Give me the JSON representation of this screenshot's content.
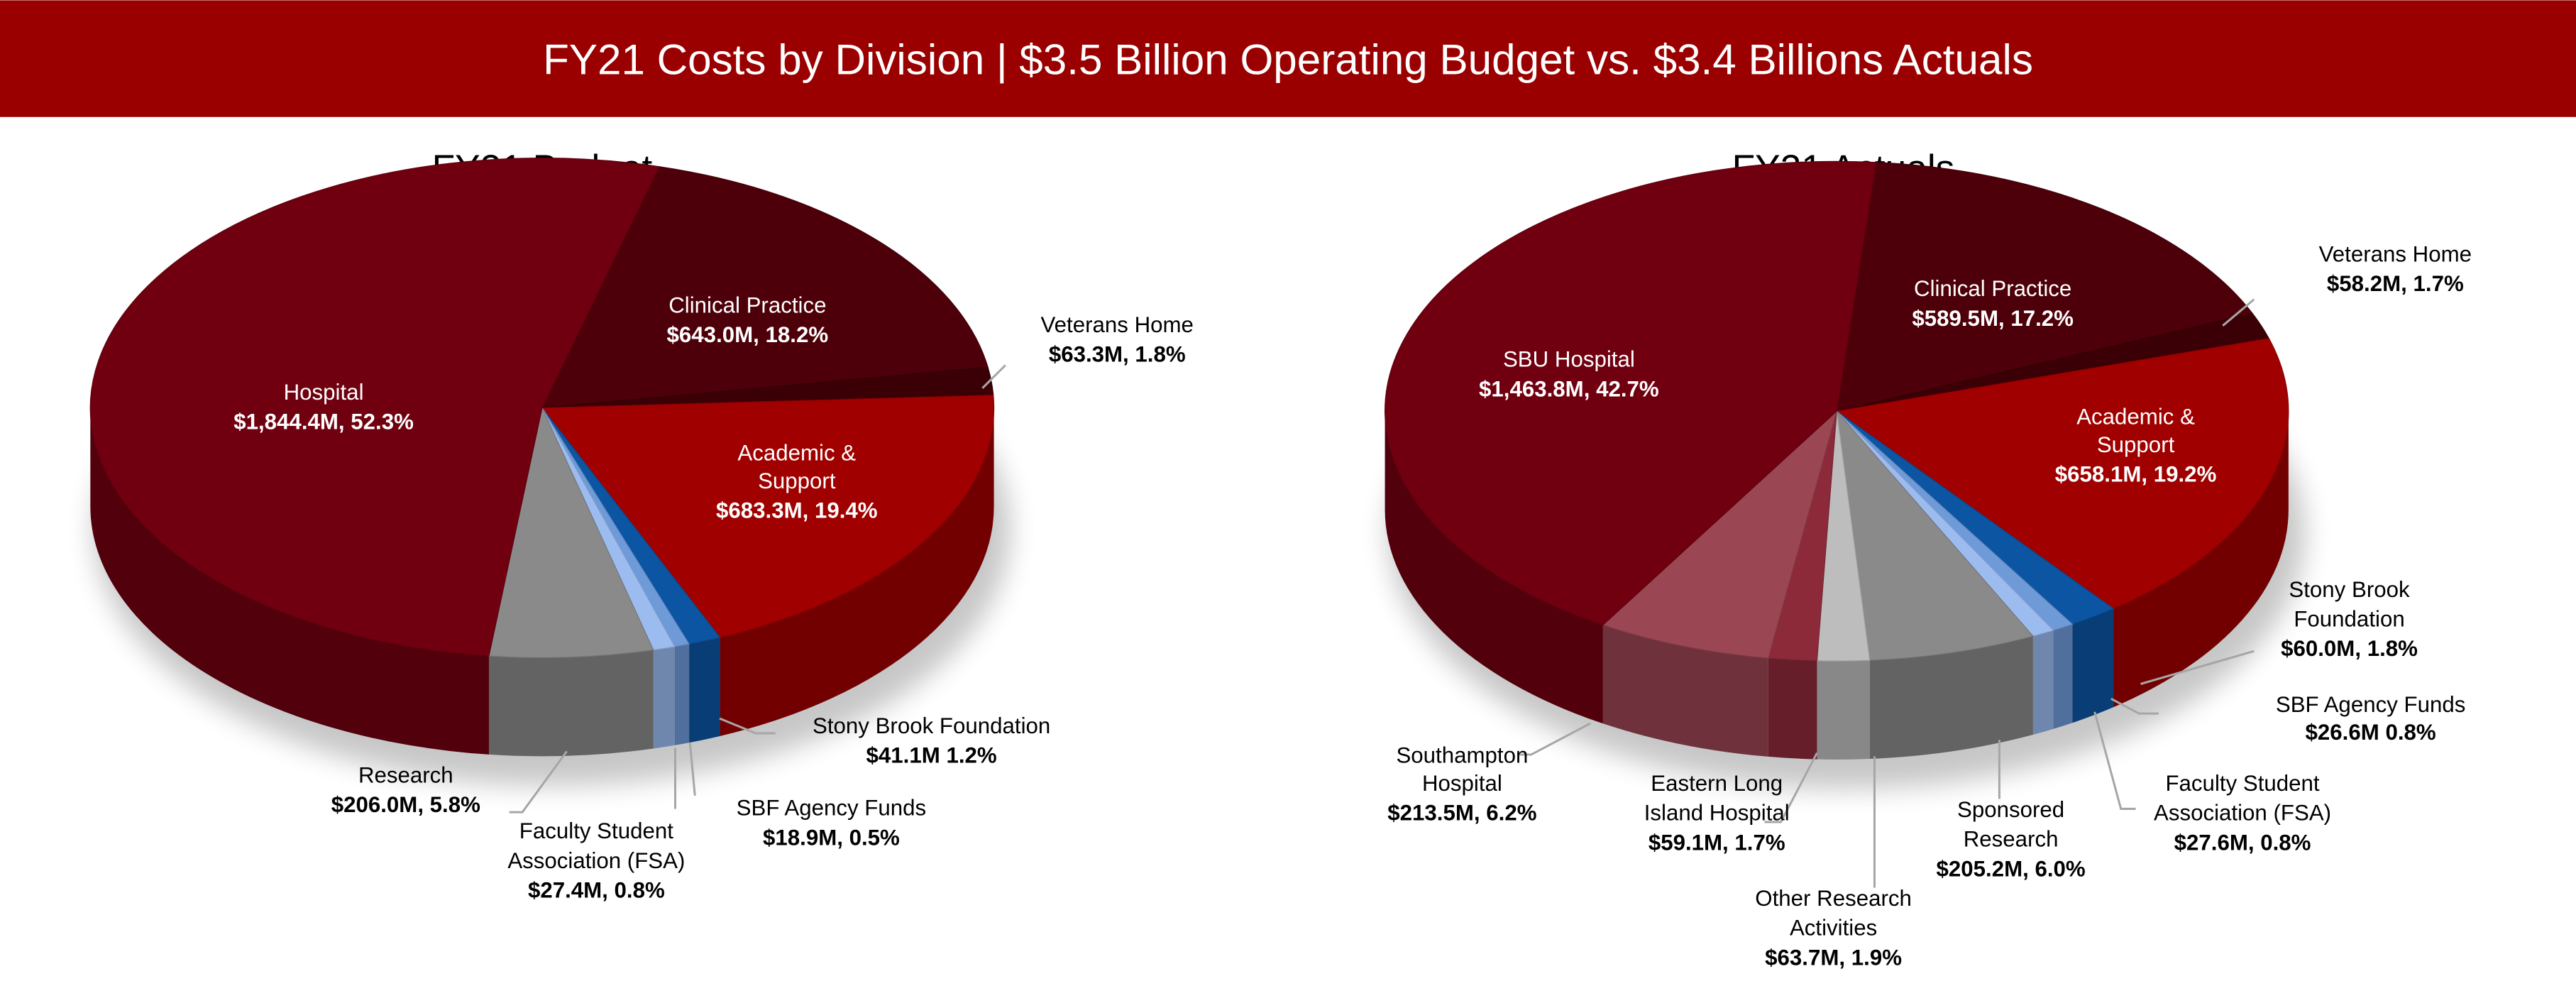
{
  "header": {
    "title": "FY21 Costs by Division | $3.5 Billion Operating Budget vs. $3.4 Billions Actuals",
    "background": "#9a0000"
  },
  "chart_data": [
    {
      "type": "pie",
      "style": "3d",
      "title": "FY21 Budget",
      "categories": [
        "Clinical Practice",
        "Veterans Home",
        "Academic & Support",
        "Stony Brook Foundation",
        "SBF Agency Funds",
        "Faculty Student Association (FSA)",
        "Research",
        "Hospital"
      ],
      "values": [
        643.0,
        63.3,
        683.3,
        41.1,
        18.9,
        27.4,
        206.0,
        1844.4
      ],
      "percents": [
        18.2,
        1.8,
        19.4,
        1.2,
        0.5,
        0.8,
        5.8,
        52.3
      ],
      "colors": [
        "#4d0009",
        "#3a0006",
        "#a00000",
        "#0b55a3",
        "#6f9ad8",
        "#9cbcf0",
        "#8a8a8a",
        "#700010"
      ],
      "labels": [
        {
          "lines": [
            "Clinical Practice"
          ],
          "value": "$643.0M, 18.2%"
        },
        {
          "lines": [
            "Veterans Home"
          ],
          "value": "$63.3M, 1.8%"
        },
        {
          "lines": [
            "Academic &",
            "Support"
          ],
          "value": "$683.3M, 19.4%"
        },
        {
          "lines": [
            "Stony Brook Foundation"
          ],
          "value": "$41.1M 1.2%"
        },
        {
          "lines": [
            "SBF Agency Funds"
          ],
          "value": "$18.9M, 0.5%"
        },
        {
          "lines": [
            "Faculty Student",
            "Association (FSA)"
          ],
          "value": "$27.4M, 0.8%"
        },
        {
          "lines": [
            "Research"
          ],
          "value": "$206.0M, 5.8%"
        },
        {
          "lines": [
            "Hospital"
          ],
          "value": "$1,844.4M, 52.3%"
        }
      ]
    },
    {
      "type": "pie",
      "style": "3d",
      "title": "FY21 Actuals",
      "categories": [
        "Clinical Practice",
        "Veterans Home",
        "Academic & Support",
        "Stony Brook Foundation",
        "SBF Agency Funds",
        "Faculty Student Association (FSA)",
        "Sponsored Research",
        "Other Research Activities",
        "Eastern Long Island Hospital",
        "Southampton Hospital",
        "SBU Hospital"
      ],
      "values": [
        589.5,
        58.2,
        658.1,
        60.0,
        26.6,
        27.6,
        205.2,
        63.7,
        59.1,
        213.5,
        1463.8
      ],
      "percents": [
        17.2,
        1.7,
        19.2,
        1.8,
        0.8,
        0.8,
        6.0,
        1.9,
        1.7,
        6.2,
        42.7
      ],
      "colors": [
        "#4d0009",
        "#3a0006",
        "#a00000",
        "#0b55a3",
        "#6f9ad8",
        "#9cbcf0",
        "#8a8a8a",
        "#bdbdbd",
        "#8c2a3a",
        "#9a4653",
        "#700010"
      ],
      "labels": [
        {
          "lines": [
            "Clinical Practice"
          ],
          "value": "$589.5M, 17.2%"
        },
        {
          "lines": [
            "Veterans Home"
          ],
          "value": "$58.2M, 1.7%"
        },
        {
          "lines": [
            "Academic &",
            "Support"
          ],
          "value": "$658.1M, 19.2%"
        },
        {
          "lines": [
            "Stony Brook",
            "Foundation"
          ],
          "value": "$60.0M, 1.8%"
        },
        {
          "lines": [
            "SBF Agency Funds"
          ],
          "value": "$26.6M 0.8%"
        },
        {
          "lines": [
            "Faculty Student",
            "Association (FSA)"
          ],
          "value": "$27.6M, 0.8%"
        },
        {
          "lines": [
            "Sponsored",
            "Research"
          ],
          "value": "$205.2M, 6.0%"
        },
        {
          "lines": [
            "Other Research",
            "Activities"
          ],
          "value": "$63.7M, 1.9%"
        },
        {
          "lines": [
            "Eastern Long",
            "Island Hospital"
          ],
          "value": "$59.1M, 1.7%"
        },
        {
          "lines": [
            "Southampton",
            "Hospital"
          ],
          "value": "$213.5M, 6.2%"
        },
        {
          "lines": [
            "SBU Hospital"
          ],
          "value": "$1,463.8M, 42.7%"
        }
      ]
    }
  ]
}
